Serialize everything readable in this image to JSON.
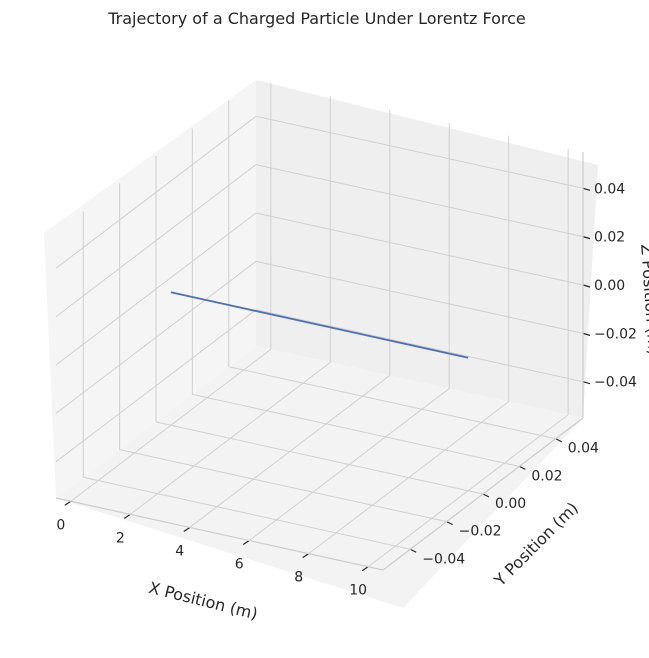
{
  "chart_data": {
    "type": "line",
    "projection": "3d",
    "title": "Trajectory of a Charged Particle Under Lorentz Force",
    "xlabel": "X Position (m)",
    "ylabel": "Y Position (m)",
    "zlabel": "Z Position (m)",
    "xlim": [
      -0.5,
      10.5
    ],
    "ylim": [
      -0.055,
      0.055
    ],
    "zlim": [
      -0.055,
      0.055
    ],
    "x_ticks": [
      "0",
      "2",
      "4",
      "6",
      "8",
      "10"
    ],
    "y_ticks": [
      "−0.04",
      "−0.02",
      "0.00",
      "0.02",
      "0.04"
    ],
    "z_ticks": [
      "−0.04",
      "−0.02",
      "0.00",
      "0.02",
      "0.04"
    ],
    "grid": true,
    "series": [
      {
        "color": "#4c72b0",
        "x": [
          0,
          10
        ],
        "y": [
          0,
          0
        ],
        "z": [
          0,
          0
        ]
      }
    ]
  }
}
